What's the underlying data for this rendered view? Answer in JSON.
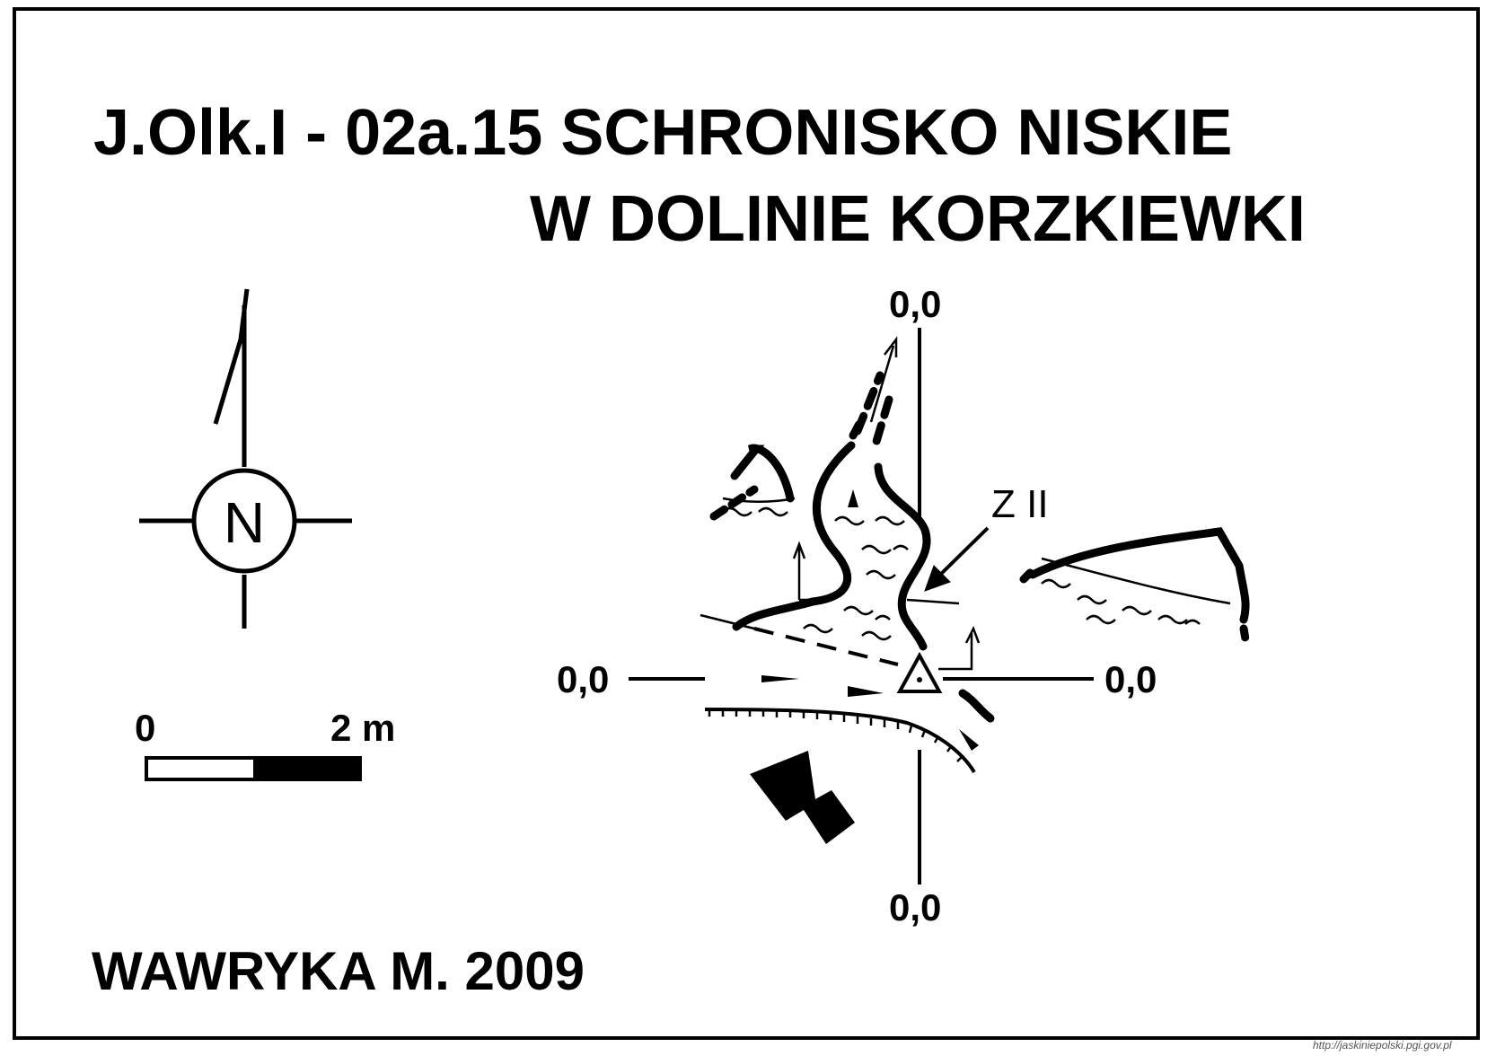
{
  "title": {
    "line1": "J.Olk.I - 02a.15  SCHRONISKO NISKIE",
    "line2": "W DOLINIE KORZKIEWKI"
  },
  "author": "WAWRYKA M. 2009",
  "north_arrow": {
    "label": "N",
    "icon": "north-arrow-icon"
  },
  "scale_bar": {
    "start_label": "0",
    "end_label": "2 m"
  },
  "cross_section_labels": {
    "top": "0,0",
    "bottom": "0,0",
    "left": "0,0",
    "right": "0,0"
  },
  "survey_point_label": "Z II",
  "credit": "http://jaskiniepolski.pgi.gov.pl",
  "colors": {
    "ink": "#000000",
    "paper": "#ffffff"
  }
}
